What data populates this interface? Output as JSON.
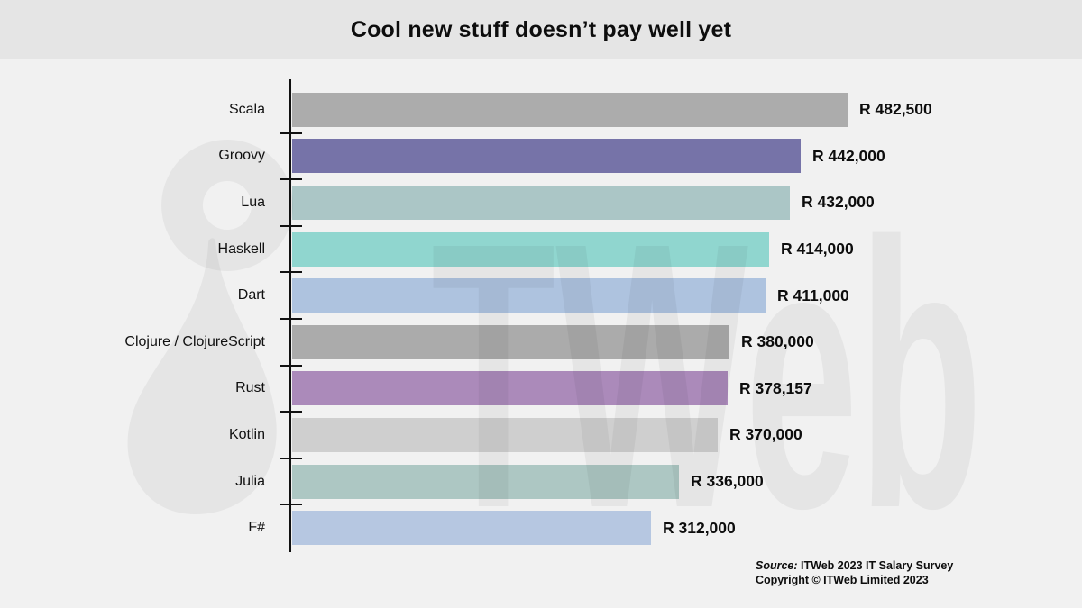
{
  "header": {
    "title": "Cool new stuff doesn’t pay well yet"
  },
  "chart_data": {
    "type": "bar",
    "orientation": "horizontal",
    "title": "Cool new stuff doesn’t pay well yet",
    "categories": [
      "Scala",
      "Groovy",
      "Lua",
      "Haskell",
      "Dart",
      "Clojure / ClojureScript",
      "Rust",
      "Kotlin",
      "Julia",
      "F#"
    ],
    "values": [
      482500,
      442000,
      432000,
      414000,
      411000,
      380000,
      378157,
      370000,
      336000,
      312000
    ],
    "value_labels": [
      "R 482,500",
      "R 442,000",
      "R 432,000",
      "R 414,000",
      "R 411,000",
      "R 380,000",
      "R 378,157",
      "R 370,000",
      "R 336,000",
      "R 312,000"
    ],
    "bar_colors": [
      "#acacac",
      "#7673a8",
      "#abc6c6",
      "#90d6cf",
      "#aec3df",
      "#ababab",
      "#ab8aba",
      "#cfcfcf",
      "#adc7c3",
      "#b6c7e1"
    ],
    "xlim": [
      0,
      482500
    ],
    "grid": false,
    "legend": null,
    "xlabel": "",
    "ylabel": "",
    "currency_prefix": "R"
  },
  "source": {
    "label": "Source:",
    "text": " ITWeb 2023 IT Salary Survey",
    "copyright": "Copyright © ITWeb Limited 2023"
  },
  "watermark": {
    "text": "TWeb"
  },
  "colors": {
    "background": "#f1f1f1",
    "header_background": "#e5e5e5",
    "axis": "#111111",
    "text": "#0d0d0d"
  }
}
